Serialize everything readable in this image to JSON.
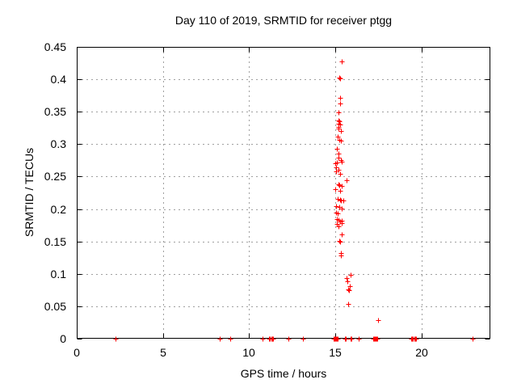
{
  "window": {
    "background": "#ffffff"
  },
  "chart_data": {
    "type": "scatter",
    "title": "Day 110 of 2019, SRMTID for receiver ptgg",
    "xlabel": "GPS time / hours",
    "ylabel": "SRMTID / TECUs",
    "xlim": [
      0,
      24
    ],
    "ylim": [
      0,
      0.45
    ],
    "xticks": [
      {
        "v": 0,
        "label": "0"
      },
      {
        "v": 5,
        "label": "5"
      },
      {
        "v": 10,
        "label": "10"
      },
      {
        "v": 15,
        "label": "15"
      },
      {
        "v": 20,
        "label": "20"
      }
    ],
    "yticks": [
      {
        "v": 0.0,
        "label": "0"
      },
      {
        "v": 0.05,
        "label": "0.05"
      },
      {
        "v": 0.1,
        "label": "0.1"
      },
      {
        "v": 0.15,
        "label": "0.15"
      },
      {
        "v": 0.2,
        "label": "0.2"
      },
      {
        "v": 0.25,
        "label": "0.25"
      },
      {
        "v": 0.3,
        "label": "0.3"
      },
      {
        "v": 0.35,
        "label": "0.35"
      },
      {
        "v": 0.4,
        "label": "0.4"
      },
      {
        "v": 0.45,
        "label": "0.45"
      }
    ],
    "grid": true,
    "legend": "none",
    "marker": "plus",
    "marker_size": 7,
    "colors": {
      "marker": "#ff0000",
      "grid": "#a0a0a0",
      "border": "#000000",
      "text": "#000000"
    },
    "series": [
      {
        "name": "SRMTID",
        "points": [
          [
            15.36,
            0.427
          ],
          [
            15.24,
            0.403
          ],
          [
            15.29,
            0.401
          ],
          [
            15.26,
            0.372
          ],
          [
            15.26,
            0.363
          ],
          [
            15.18,
            0.349
          ],
          [
            15.2,
            0.337
          ],
          [
            15.25,
            0.335
          ],
          [
            15.17,
            0.332
          ],
          [
            15.27,
            0.33
          ],
          [
            15.21,
            0.327
          ],
          [
            15.18,
            0.324
          ],
          [
            15.31,
            0.32
          ],
          [
            15.14,
            0.312
          ],
          [
            15.22,
            0.307
          ],
          [
            15.31,
            0.305
          ],
          [
            15.1,
            0.293
          ],
          [
            15.19,
            0.285
          ],
          [
            15.2,
            0.279
          ],
          [
            15.31,
            0.276
          ],
          [
            15.39,
            0.273
          ],
          [
            15.08,
            0.272
          ],
          [
            14.98,
            0.27
          ],
          [
            15.07,
            0.264
          ],
          [
            15.18,
            0.261
          ],
          [
            15.06,
            0.258
          ],
          [
            15.28,
            0.254
          ],
          [
            15.65,
            0.244
          ],
          [
            15.18,
            0.238
          ],
          [
            15.23,
            0.237
          ],
          [
            15.39,
            0.236
          ],
          [
            15.0,
            0.231
          ],
          [
            15.3,
            0.228
          ],
          [
            15.15,
            0.216
          ],
          [
            15.28,
            0.215
          ],
          [
            15.33,
            0.213
          ],
          [
            15.46,
            0.213
          ],
          [
            15.07,
            0.205
          ],
          [
            15.22,
            0.203
          ],
          [
            15.38,
            0.201
          ],
          [
            15.07,
            0.195
          ],
          [
            15.15,
            0.193
          ],
          [
            15.1,
            0.184
          ],
          [
            15.2,
            0.183
          ],
          [
            15.39,
            0.182
          ],
          [
            15.26,
            0.181
          ],
          [
            15.36,
            0.178
          ],
          [
            15.1,
            0.177
          ],
          [
            15.18,
            0.173
          ],
          [
            15.39,
            0.161
          ],
          [
            15.23,
            0.151
          ],
          [
            15.27,
            0.15
          ],
          [
            15.33,
            0.132
          ],
          [
            15.33,
            0.128
          ],
          [
            15.88,
            0.098
          ],
          [
            15.66,
            0.093
          ],
          [
            15.7,
            0.088
          ],
          [
            15.85,
            0.081
          ],
          [
            15.73,
            0.076
          ],
          [
            15.79,
            0.075
          ],
          [
            15.75,
            0.054
          ],
          [
            17.47,
            0.029
          ],
          [
            2.26,
            0
          ],
          [
            8.28,
            0
          ],
          [
            8.9,
            0
          ],
          [
            10.78,
            0
          ],
          [
            11.17,
            0
          ],
          [
            11.22,
            0
          ],
          [
            11.28,
            0
          ],
          [
            11.34,
            0
          ],
          [
            11.4,
            0
          ],
          [
            12.26,
            0
          ],
          [
            13.12,
            0
          ],
          [
            14.9,
            0
          ],
          [
            14.95,
            0
          ],
          [
            15.0,
            0
          ],
          [
            15.05,
            0
          ],
          [
            15.1,
            0
          ],
          [
            15.15,
            0
          ],
          [
            15.57,
            0
          ],
          [
            15.62,
            0
          ],
          [
            15.87,
            0
          ],
          [
            15.92,
            0
          ],
          [
            16.37,
            0
          ],
          [
            17.2,
            0
          ],
          [
            17.25,
            0
          ],
          [
            17.3,
            0
          ],
          [
            17.35,
            0
          ],
          [
            17.4,
            0
          ],
          [
            17.45,
            0
          ],
          [
            19.42,
            0
          ],
          [
            19.47,
            0
          ],
          [
            19.52,
            0
          ],
          [
            19.6,
            0
          ],
          [
            19.65,
            0
          ],
          [
            19.7,
            0
          ],
          [
            22.96,
            0
          ]
        ]
      }
    ]
  }
}
